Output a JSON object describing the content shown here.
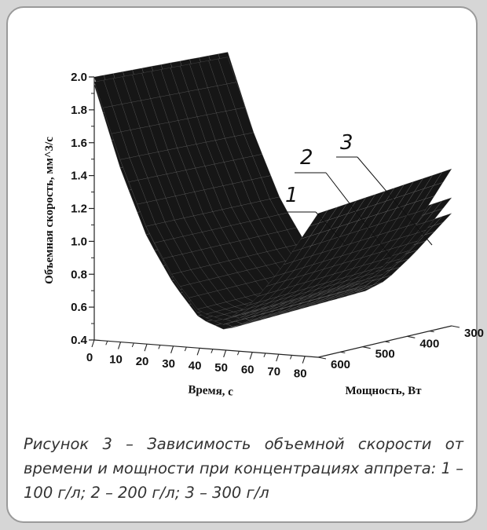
{
  "caption": "Рисунок 3 – Зависимость объемной скорости от времени и мощности при концентрациях аппрета: 1 – 100 г/л; 2 – 200 г/л; 3 – 300 г/л",
  "chart_data": {
    "type": "surface",
    "title": "",
    "xlabel": "Время, с",
    "ylabel": "Мощность, Вт",
    "zlabel": "Объемная скорость, мм^3/с",
    "x_ticks": [
      "0",
      "10",
      "20",
      "30",
      "40",
      "50",
      "60",
      "70",
      "80"
    ],
    "y_ticks": [
      "300",
      "400",
      "500",
      "600"
    ],
    "z_ticks": [
      "0.4",
      "0.6",
      "0.8",
      "1.0",
      "1.2",
      "1.4",
      "1.6",
      "1.8",
      "2.0"
    ],
    "xlim": [
      0,
      85
    ],
    "ylim": [
      300,
      600
    ],
    "zlim": [
      0.4,
      2.0
    ],
    "series": [
      {
        "name": "1",
        "approx_z_at_x": {
          "x": [
            0,
            10,
            20,
            30,
            40,
            50,
            60,
            70,
            80
          ],
          "z": [
            2.0,
            1.5,
            1.1,
            0.8,
            0.6,
            0.55,
            0.65,
            0.8,
            1.0
          ]
        }
      },
      {
        "name": "2",
        "approx_z_at_x": {
          "x": [
            0,
            10,
            20,
            30,
            40,
            50,
            60,
            70,
            80
          ],
          "z": [
            1.95,
            1.45,
            1.05,
            0.78,
            0.58,
            0.52,
            0.6,
            0.75,
            0.92
          ]
        }
      },
      {
        "name": "3",
        "approx_z_at_x": {
          "x": [
            0,
            10,
            20,
            30,
            40,
            50,
            60,
            70,
            80
          ],
          "z": [
            1.97,
            1.5,
            1.1,
            0.82,
            0.62,
            0.58,
            0.7,
            0.9,
            1.15
          ]
        }
      }
    ],
    "annotations": [
      "1",
      "2",
      "3"
    ],
    "colors": {
      "surface": "#161616",
      "mesh": "#8a8a8a",
      "axis": "#222222"
    }
  }
}
